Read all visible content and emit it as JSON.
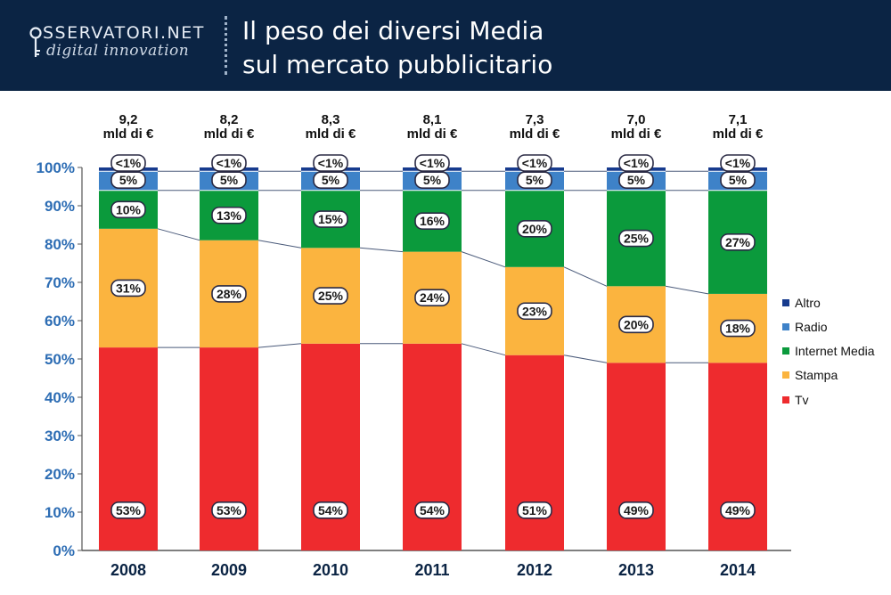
{
  "header": {
    "logo_top": "SSERVATORI.NET",
    "logo_bottom": "digital innovation",
    "title_line1": "Il peso dei diversi Media",
    "title_line2": "sul mercato pubblicitario"
  },
  "chart_data": {
    "type": "bar",
    "stacked": true,
    "title": "Il peso dei diversi Media sul mercato pubblicitario",
    "categories": [
      "2008",
      "2009",
      "2010",
      "2011",
      "2012",
      "2013",
      "2014"
    ],
    "totals": [
      "9,2\nmld di €",
      "8,2\nmld di €",
      "8,3\nmld di €",
      "8,1\nmld di €",
      "7,3\nmld di €",
      "7,0\nmld di €",
      "7,1\nmld di €"
    ],
    "yticks": [
      "0%",
      "10%",
      "20%",
      "30%",
      "40%",
      "50%",
      "60%",
      "70%",
      "80%",
      "90%",
      "100%"
    ],
    "ylim": [
      0,
      100
    ],
    "series": [
      {
        "name": "Tv",
        "color": "#ee2b2e",
        "values": [
          53,
          53,
          54,
          54,
          51,
          49,
          49
        ],
        "labels": [
          "53%",
          "53%",
          "54%",
          "54%",
          "51%",
          "49%",
          "49%"
        ]
      },
      {
        "name": "Stampa",
        "color": "#fbb43f",
        "values": [
          31,
          28,
          25,
          24,
          23,
          20,
          18
        ],
        "labels": [
          "31%",
          "28%",
          "25%",
          "24%",
          "23%",
          "20%",
          "18%"
        ]
      },
      {
        "name": "Internet Media",
        "color": "#0b9a3c",
        "values": [
          10,
          13,
          15,
          16,
          20,
          25,
          27
        ],
        "labels": [
          "10%",
          "13%",
          "15%",
          "16%",
          "20%",
          "25%",
          "27%"
        ]
      },
      {
        "name": "Radio",
        "color": "#3e82c8",
        "values": [
          5,
          5,
          5,
          5,
          5,
          5,
          5
        ],
        "labels": [
          "5%",
          "5%",
          "5%",
          "5%",
          "5%",
          "5%",
          "5%"
        ]
      },
      {
        "name": "Altro",
        "color": "#173b8e",
        "values": [
          1,
          1,
          1,
          1,
          1,
          1,
          1
        ],
        "labels": [
          "<1%",
          "<1%",
          "<1%",
          "<1%",
          "<1%",
          "<1%",
          "<1%"
        ]
      }
    ],
    "legend_order": [
      "Altro",
      "Radio",
      "Internet Media",
      "Stampa",
      "Tv"
    ],
    "legend_position": "right",
    "grid": false
  }
}
